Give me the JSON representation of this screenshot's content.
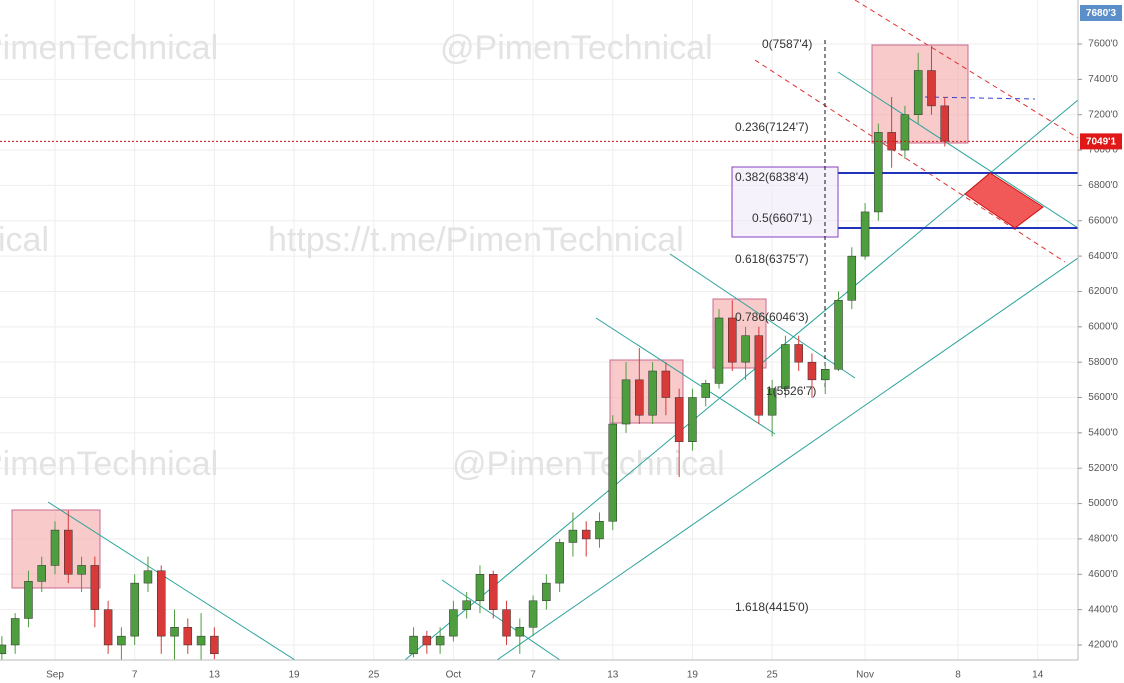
{
  "chart_data": {
    "type": "candlestick",
    "watermarks": [
      "@PimenTechnical",
      "PimenTechnical",
      "https://t.me/PimenTechnical",
      "ical",
      "PimenTechnical",
      "@PimenTechnical"
    ],
    "annotations": [
      "0(7587'4)",
      "0.236(7124'7)",
      "0.382(6838'4)",
      "0.5(6607'1)",
      "0.618(6375'7)",
      "0.786(6046'3)",
      "1(5526'7)",
      "1.618(4415'0)"
    ],
    "top_label": "7680'3",
    "last_price": {
      "value": 7049.1,
      "label": "7049'1"
    },
    "up_color": "#4e9d3f",
    "down_color": "#d83a3a",
    "grid": true,
    "categories": [
      null,
      null,
      null,
      null,
      "Sep",
      null,
      null,
      null,
      null,
      null,
      "7",
      null,
      null,
      null,
      null,
      null,
      "13",
      null,
      null,
      null,
      null,
      null,
      "19",
      null,
      null,
      null,
      null,
      null,
      "25",
      null,
      null,
      null,
      null,
      null,
      "Oct",
      null,
      null,
      null,
      null,
      null,
      "7",
      null,
      null,
      null,
      null,
      null,
      "13",
      null,
      null,
      null,
      null,
      null,
      "19",
      null,
      null,
      null,
      null,
      null,
      "25",
      null,
      null,
      null,
      null,
      null,
      null,
      "Nov",
      null,
      null,
      null,
      null,
      null,
      null,
      "8",
      null,
      null,
      null,
      null,
      null,
      "14",
      null,
      null
    ],
    "open": [
      4150,
      4200,
      4350,
      4560,
      4650,
      4850,
      4600,
      4650,
      4400,
      4200,
      4250,
      4550,
      4620,
      4250,
      4300,
      4200,
      4250,
      null,
      null,
      null,
      null,
      null,
      null,
      null,
      null,
      null,
      null,
      null,
      null,
      null,
      null,
      4150,
      4250,
      4200,
      4250,
      4400,
      4450,
      4600,
      4400,
      4250,
      4300,
      4450,
      4550,
      4780,
      4850,
      4800,
      4900,
      5450,
      5700,
      5500,
      5750,
      5600,
      5350,
      5600,
      5680,
      6050,
      5800,
      5950,
      5500,
      5650,
      5900,
      5800,
      5700,
      5760,
      6150,
      6400,
      6650,
      7100,
      7000,
      7200,
      7450,
      7250,
      null,
      null,
      null,
      null,
      null,
      null,
      null,
      null,
      null
    ],
    "high": [
      4250,
      4380,
      4620,
      4700,
      4900,
      4960,
      4700,
      4700,
      4450,
      4300,
      4600,
      4700,
      4650,
      4400,
      4350,
      4380,
      4300,
      null,
      null,
      null,
      null,
      null,
      null,
      null,
      null,
      null,
      null,
      null,
      null,
      null,
      null,
      4300,
      4280,
      4300,
      4450,
      4500,
      4650,
      4620,
      4450,
      4350,
      4480,
      4600,
      4800,
      4950,
      4900,
      4950,
      5500,
      5800,
      5880,
      5800,
      5800,
      5650,
      5650,
      5700,
      6100,
      6150,
      6000,
      6000,
      5700,
      5950,
      5950,
      5850,
      5800,
      6200,
      6450,
      6700,
      7150,
      7300,
      7250,
      7550,
      7590,
      7300,
      null,
      null,
      null,
      null,
      null,
      null,
      null,
      null,
      null
    ],
    "low": [
      4100,
      4150,
      4300,
      4500,
      4600,
      4550,
      4500,
      4300,
      4150,
      4100,
      4200,
      4500,
      4150,
      4100,
      4150,
      4100,
      4120,
      null,
      null,
      null,
      null,
      null,
      null,
      null,
      null,
      null,
      null,
      null,
      null,
      null,
      null,
      4130,
      4150,
      4150,
      4220,
      4350,
      4380,
      4350,
      4200,
      4150,
      4250,
      4400,
      4500,
      4700,
      4700,
      4750,
      4850,
      5400,
      5450,
      5450,
      5500,
      5150,
      5300,
      5550,
      5650,
      5750,
      5700,
      5450,
      5380,
      5600,
      5750,
      5600,
      5620,
      5750,
      6100,
      6380,
      6600,
      6900,
      6950,
      7150,
      7200,
      7020,
      null,
      null,
      null,
      null,
      null,
      null,
      null,
      null,
      null
    ],
    "close": [
      4200,
      4350,
      4560,
      4650,
      4850,
      4600,
      4650,
      4400,
      4200,
      4250,
      4550,
      4620,
      4250,
      4300,
      4200,
      4250,
      4150,
      null,
      null,
      null,
      null,
      null,
      null,
      null,
      null,
      null,
      null,
      null,
      null,
      null,
      null,
      4250,
      4200,
      4250,
      4400,
      4450,
      4600,
      4400,
      4250,
      4300,
      4450,
      4550,
      4780,
      4850,
      4800,
      4900,
      5450,
      5700,
      5500,
      5750,
      5600,
      5350,
      5600,
      5680,
      6050,
      5800,
      5950,
      5500,
      5650,
      5900,
      5800,
      5700,
      5760,
      6150,
      6400,
      6650,
      7100,
      7000,
      7200,
      7450,
      7250,
      7050,
      null,
      null,
      null,
      null,
      null,
      null,
      null,
      null,
      null
    ],
    "ylim": [
      4115,
      7849
    ],
    "yticks": [
      {
        "value": 4200,
        "label": "4200'0"
      },
      {
        "value": 4400,
        "label": "4400'0"
      },
      {
        "value": 4600,
        "label": "4600'0"
      },
      {
        "value": 4800,
        "label": "4800'0"
      },
      {
        "value": 5000,
        "label": "5000'0"
      },
      {
        "value": 5200,
        "label": "5200'0"
      },
      {
        "value": 5400,
        "label": "5400'0"
      },
      {
        "value": 5600,
        "label": "5600'0"
      },
      {
        "value": 5800,
        "label": "5800'0"
      },
      {
        "value": 6000,
        "label": "6000'0"
      },
      {
        "value": 6200,
        "label": "6200'0"
      },
      {
        "value": 6400,
        "label": "6400'0"
      },
      {
        "value": 6600,
        "label": "6600'0"
      },
      {
        "value": 6800,
        "label": "6800'0"
      },
      {
        "value": 7000,
        "label": "7000'0"
      },
      {
        "value": 7200,
        "label": "7200'0"
      },
      {
        "value": 7400,
        "label": "7400'0"
      },
      {
        "value": 7600,
        "label": "7600'0"
      }
    ]
  }
}
